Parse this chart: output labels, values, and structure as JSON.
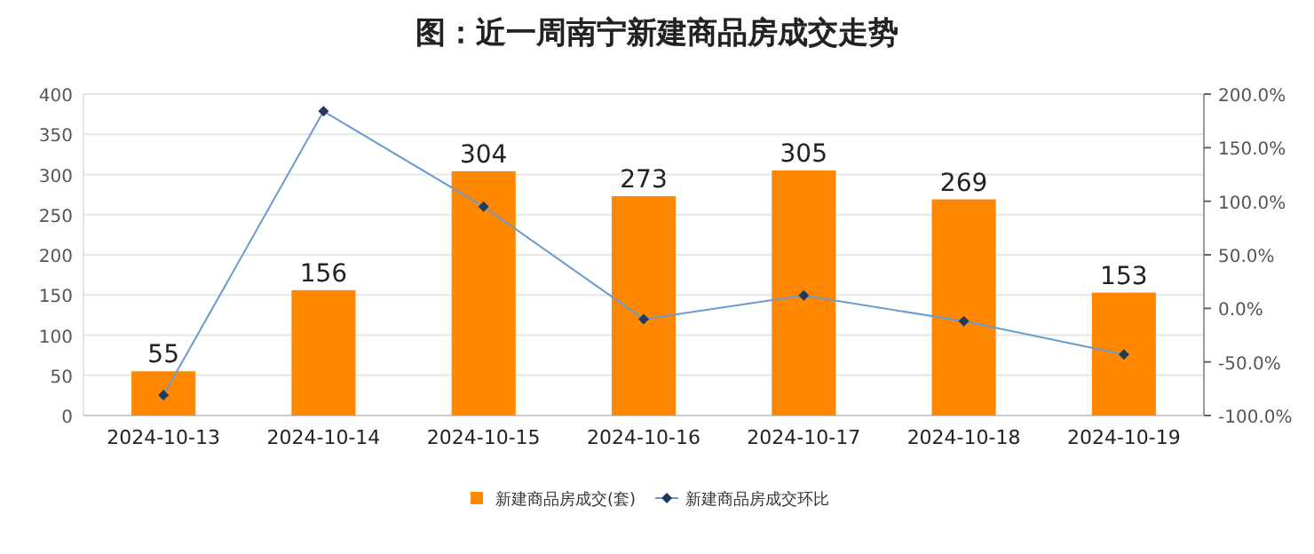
{
  "chart_data": {
    "type": "bar",
    "title": "图：近一周南宁新建商品房成交走势",
    "categories": [
      "2024-10-13",
      "2024-10-14",
      "2024-10-15",
      "2024-10-16",
      "2024-10-17",
      "2024-10-18",
      "2024-10-19"
    ],
    "series": [
      {
        "name": "新建商品房成交(套)",
        "color": "#ff8800",
        "values": [
          55,
          156,
          304,
          273,
          305,
          269,
          153
        ],
        "value_labels": [
          "55",
          "156",
          "304",
          "273",
          "305",
          "269",
          "153"
        ]
      },
      {
        "name": "新建商品房成交环比",
        "type": "line",
        "axis": "y2",
        "color": "#6a9bd1",
        "marker": "diamond",
        "values": [
          -81,
          184,
          95,
          -10,
          12,
          -12,
          -43
        ]
      }
    ],
    "ylim": [
      0,
      400
    ],
    "yticks": [
      0,
      50,
      100,
      150,
      200,
      250,
      300,
      350,
      400
    ],
    "y2lim": [
      -100,
      200
    ],
    "y2ticks": [
      {
        "value": -100,
        "label": "-100.0%"
      },
      {
        "value": -50,
        "label": "-50.0%"
      },
      {
        "value": 0,
        "label": "0.0%"
      },
      {
        "value": 50,
        "label": "50.0%"
      },
      {
        "value": 100,
        "label": "100.0%"
      },
      {
        "value": 150,
        "label": "150.0%"
      },
      {
        "value": 200,
        "label": "200.0%"
      }
    ],
    "grid": "y",
    "legend": "bottom"
  }
}
